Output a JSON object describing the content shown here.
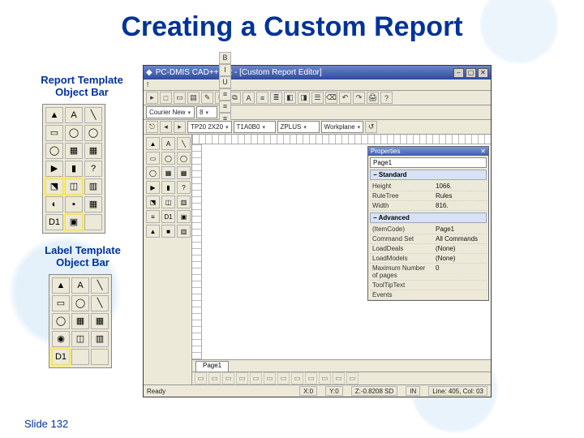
{
  "slide": {
    "title": "Creating a Custom Report",
    "number_label": "Slide 132",
    "title_color": "#003399"
  },
  "callouts": {
    "report_bar": "Report Template\nObject Bar",
    "label_bar": "Label Template\nObject Bar"
  },
  "left_palettes": {
    "report": {
      "cells": [
        "▲",
        "A",
        "╲",
        "▭",
        "◯",
        "◯",
        "◯",
        "▦",
        "▦",
        "▶",
        "▮",
        "?",
        "⬔",
        "◫",
        "▥",
        "◐",
        "▪",
        "▦",
        "D1",
        "▣",
        ""
      ],
      "highlight_index": [
        12,
        13,
        19
      ]
    },
    "label": {
      "cells": [
        "▲",
        "A",
        "╲",
        "▭",
        "◯",
        "╲",
        "◯",
        "▦",
        "▦",
        "◉",
        "◫",
        "▥",
        "D1",
        "",
        ""
      ],
      "highlight_index": [
        12
      ]
    }
  },
  "app": {
    "title": "PC-DMIS CAD++ 4.2 - [Custom Report Editor]",
    "window_buttons": [
      "–",
      "▢",
      "✕"
    ],
    "menus": [
      "!"
    ],
    "toolbar1": [
      "▸",
      "□",
      "▭",
      "▤",
      "✎",
      "✂",
      "⧉",
      "A",
      "≡",
      "≣",
      "◧",
      "◨",
      "☰",
      "⌫",
      "↶",
      "↷",
      "🖨",
      "?"
    ],
    "toolbar2": {
      "font_dd": "Courier New",
      "size_dd": "8",
      "buttons": [
        "B",
        "I",
        "U",
        "≡",
        "≡",
        "≡",
        "A",
        "▮",
        "▦",
        "▤"
      ]
    },
    "toolbar3": {
      "dropdowns": [
        "TP20 2X20",
        "T1A0B0",
        "ZPLUS",
        "Workplane"
      ],
      "buttons_before": [
        "⎋",
        "◂",
        "▸"
      ],
      "buttons_after": [
        "↺"
      ]
    },
    "palette_cells": [
      "▲",
      "A",
      "╲",
      "▭",
      "◯",
      "◯",
      "◯",
      "▦",
      "▦",
      "▶",
      "▮",
      "?",
      "⬔",
      "◫",
      "▥",
      "≡",
      "D1",
      "▣",
      "▲",
      "■",
      "▥"
    ],
    "properties": {
      "panel_title": "Properties",
      "selected": "Page1",
      "groups": [
        {
          "name": "Standard",
          "rows": [
            {
              "k": "Height",
              "v": "1066."
            },
            {
              "k": "RuleTree",
              "v": "Rules"
            },
            {
              "k": "Width",
              "v": "816."
            }
          ]
        },
        {
          "name": "Advanced",
          "rows": [
            {
              "k": "(ItemCode)",
              "v": "Page1"
            },
            {
              "k": "Command Set",
              "v": "All Commands"
            },
            {
              "k": "LoadDeals",
              "v": "(None)"
            },
            {
              "k": "LoadModels",
              "v": "(None)"
            },
            {
              "k": "Maximum Number of pages",
              "v": "0"
            },
            {
              "k": "ToolTipText",
              "v": ""
            },
            {
              "k": "Events",
              "v": ""
            }
          ]
        }
      ]
    },
    "page_tab": "Page1",
    "align_bar_count": 12,
    "status": {
      "ready": "Ready",
      "x": "X:0",
      "y": "Y:0",
      "z": "Z:-0.8208 SD",
      "mode": "IN",
      "pos": "Line: 405, Col: 03"
    }
  }
}
